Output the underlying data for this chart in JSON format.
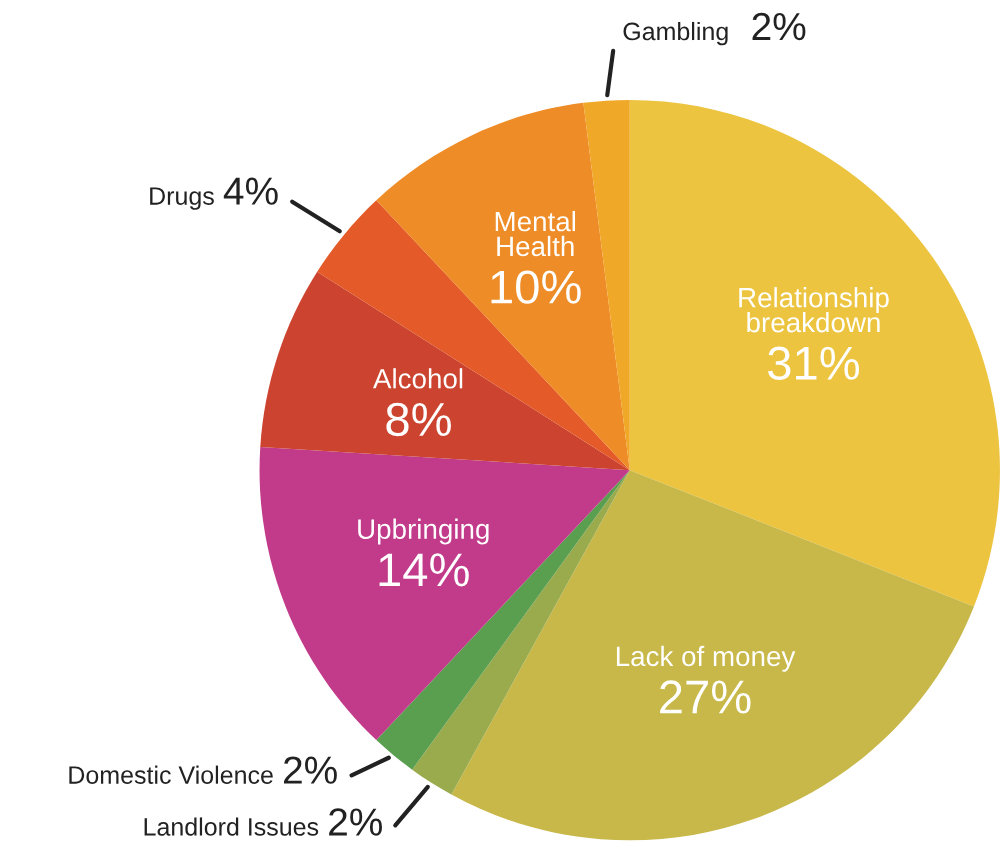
{
  "chart_data": {
    "type": "pie",
    "categories": [
      "Relationship\nbreakdown",
      "Lack of money",
      "Landlord Issues",
      "Domestic Violence",
      "Upbringing",
      "Alcohol",
      "Drugs",
      "Mental\nHealth",
      "Gambling"
    ],
    "values": [
      31,
      27,
      2,
      2,
      14,
      8,
      4,
      10,
      2
    ],
    "value_labels": [
      "31%",
      "27%",
      "2%",
      "2%",
      "14%",
      "8%",
      "4%",
      "10%",
      "2%"
    ],
    "colors": [
      "#ecc440",
      "#c8b84a",
      "#9aab4e",
      "#5a9e50",
      "#c23a8a",
      "#cc4430",
      "#e45a28",
      "#ee8c28",
      "#f0a828"
    ]
  }
}
